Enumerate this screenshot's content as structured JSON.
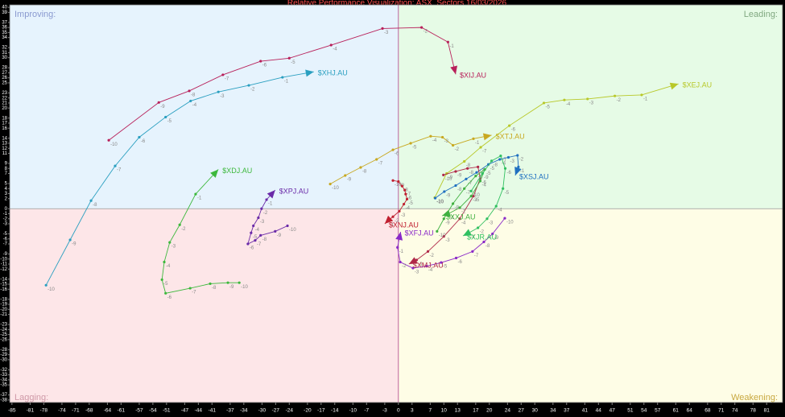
{
  "chart_data": {
    "type": "rotation",
    "title": "Relative Performance Visualization: ASX_Sectors 16/03/2026",
    "quadrants": {
      "top_left": "Improving:",
      "top_right": "Leading:",
      "bottom_left": "Lagging:",
      "bottom_right": "Weakening:"
    },
    "quadrant_colors": {
      "top_left": "#e6f3fd",
      "top_right": "#e6fbe6",
      "bottom_left": "#fde6e8",
      "bottom_right": "#fefde6"
    },
    "xlim": [
      -85.5,
      84.5
    ],
    "ylim": [
      -38.5,
      40.5
    ],
    "xticks": [
      -85,
      -81,
      -78,
      -74,
      -71,
      -68,
      -64,
      -61,
      -57,
      -54,
      -51,
      -47,
      -44,
      -41,
      -37,
      -34,
      -30,
      -27,
      -24,
      -20,
      -17,
      -14,
      -10,
      -7,
      -3,
      0,
      3,
      7,
      10,
      13,
      17,
      20,
      24,
      27,
      30,
      34,
      37,
      41,
      44,
      47,
      51,
      54,
      57,
      61,
      64,
      68,
      71,
      74,
      78,
      81
    ],
    "yticks": [
      40,
      39,
      37,
      36,
      35,
      34,
      32,
      31,
      30,
      28,
      27,
      26,
      25,
      23,
      22,
      21,
      20,
      18,
      17,
      16,
      14,
      13,
      12,
      11,
      9,
      8,
      7,
      5,
      4,
      3,
      2,
      0,
      -1,
      -2,
      -3,
      -5,
      -6,
      -7,
      -9,
      -10,
      -11,
      -12,
      -14,
      -15,
      -16,
      -18,
      -19,
      -20,
      -21,
      -23,
      -24,
      -25,
      -26,
      -28,
      -29,
      -30,
      -32,
      -33,
      -34,
      -35,
      -37,
      -38
    ],
    "trail_labels": [
      -10,
      -9,
      -8,
      -7,
      -6,
      -5,
      -4,
      -3,
      -2,
      -1
    ],
    "series": [
      {
        "name": "$XIJ.AU",
        "color": "#b8205a",
        "x": [
          -63.7,
          -52.7,
          -46.0,
          -38.6,
          -30.3,
          -24.0,
          -14.8,
          -3.5,
          5.1,
          10.9,
          12.6
        ],
        "y": [
          13.6,
          21.1,
          23.4,
          26.6,
          29.3,
          29.9,
          32.5,
          35.8,
          36.0,
          33.1,
          26.7
        ]
      },
      {
        "name": "$XHJ.AU",
        "color": "#2a9fc0",
        "x": [
          -77.5,
          -72.2,
          -67.6,
          -62.3,
          -57.0,
          -51.2,
          -45.7,
          -39.6,
          -32.9,
          -25.5,
          -18.6
        ],
        "y": [
          -15.2,
          -6.2,
          1.6,
          8.5,
          14.2,
          18.2,
          21.4,
          23.2,
          24.5,
          26.1,
          27.2
        ]
      },
      {
        "name": "$XDJ.AU",
        "color": "#3cb83c",
        "x": [
          -35.0,
          -37.5,
          -41.4,
          -45.8,
          -51.2,
          -52.0,
          -51.5,
          -50.3,
          -48.1,
          -44.6,
          -39.6
        ],
        "y": [
          -14.7,
          -14.7,
          -14.9,
          -15.8,
          -16.8,
          -14.1,
          -10.6,
          -6.7,
          -3.2,
          2.9,
          7.8
        ]
      },
      {
        "name": "$XPJ.AU",
        "color": "#6a2aa8",
        "x": [
          -24.4,
          -27.1,
          -30.3,
          -31.5,
          -33.1,
          -32.4,
          -31.9,
          -30.8,
          -30.1,
          -29.0,
          -27.1
        ],
        "y": [
          -3.4,
          -4.5,
          -5.3,
          -6.3,
          -7.0,
          -4.8,
          -3.4,
          -1.8,
          0.0,
          1.8,
          3.7
        ]
      },
      {
        "name": "$XTJ.AU",
        "color": "#c8a820",
        "x": [
          -15.0,
          -11.7,
          -8.3,
          -4.8,
          -1.2,
          2.7,
          7.1,
          9.7,
          12.0,
          16.5,
          20.5
        ],
        "y": [
          4.9,
          6.6,
          8.2,
          9.8,
          11.7,
          13.0,
          14.4,
          14.2,
          12.6,
          13.9,
          14.6
        ]
      },
      {
        "name": "$XEJ.AU",
        "color": "#b8c828",
        "x": [
          8.0,
          10.6,
          14.5,
          18.1,
          24.4,
          32.0,
          36.5,
          41.6,
          47.6,
          53.5,
          61.6
        ],
        "y": [
          2.2,
          7.0,
          9.4,
          12.2,
          16.5,
          21.0,
          21.6,
          21.8,
          22.4,
          22.6,
          24.8
        ]
      },
      {
        "name": "$XSJ.AU",
        "color": "#2070c0",
        "x": [
          8.1,
          10.1,
          12.6,
          14.9,
          17.2,
          19.8,
          22.3,
          24.2,
          26.2,
          26.4,
          25.7
        ],
        "y": [
          2.1,
          3.4,
          4.6,
          5.9,
          7.2,
          8.8,
          9.8,
          10.2,
          10.6,
          8.3,
          6.6
        ]
      },
      {
        "name": "$XNJ.AU",
        "color": "#c02030",
        "x": [
          -1.2,
          0.0,
          0.8,
          1.4,
          1.6,
          1.9,
          1.2,
          0.2,
          -1.2,
          -2.3,
          -3.0
        ],
        "y": [
          5.6,
          5.4,
          4.5,
          3.7,
          2.9,
          1.9,
          0.9,
          -0.5,
          -1.6,
          -2.4,
          -3.0
        ]
      },
      {
        "name": "$XFJ.AU",
        "color": "#8a28c8",
        "x": [
          23.4,
          20.7,
          18.8,
          16.3,
          12.7,
          9.4,
          6.2,
          3.2,
          0.4,
          -0.2,
          0.5
        ],
        "y": [
          -1.9,
          -5.0,
          -6.6,
          -8.5,
          -9.8,
          -10.7,
          -11.4,
          -11.8,
          -10.6,
          -7.7,
          -4.6
        ]
      },
      {
        "name": "$XMJ.AU",
        "color": "#b02848",
        "x": [
          9.9,
          12.6,
          15.2,
          17.5,
          18.0,
          16.5,
          13.5,
          10.0,
          6.5,
          4.0,
          2.3
        ],
        "y": [
          6.7,
          7.4,
          8.0,
          8.3,
          6.0,
          2.5,
          -2.0,
          -5.5,
          -8.5,
          -10.2,
          -11.0
        ]
      },
      {
        "name": "$XXJ.AU",
        "color": "#40b040",
        "x": [
          8.5,
          10.0,
          12.0,
          14.5,
          17.0,
          19.0,
          18.0,
          16.0,
          13.5,
          11.0,
          9.6
        ],
        "y": [
          -4.5,
          -2.0,
          1.0,
          4.0,
          6.5,
          7.8,
          5.5,
          2.5,
          0.2,
          -1.0,
          -1.4
        ]
      },
      {
        "name": "$XJR.AU",
        "color": "#30c060",
        "x": [
          16.0,
          18.5,
          20.5,
          22.5,
          23.5,
          23.0,
          21.5,
          19.5,
          17.5,
          15.5,
          14.2
        ],
        "y": [
          3.5,
          7.0,
          9.5,
          10.5,
          8.0,
          4.0,
          0.5,
          -2.0,
          -3.8,
          -4.8,
          -5.4
        ]
      }
    ]
  }
}
